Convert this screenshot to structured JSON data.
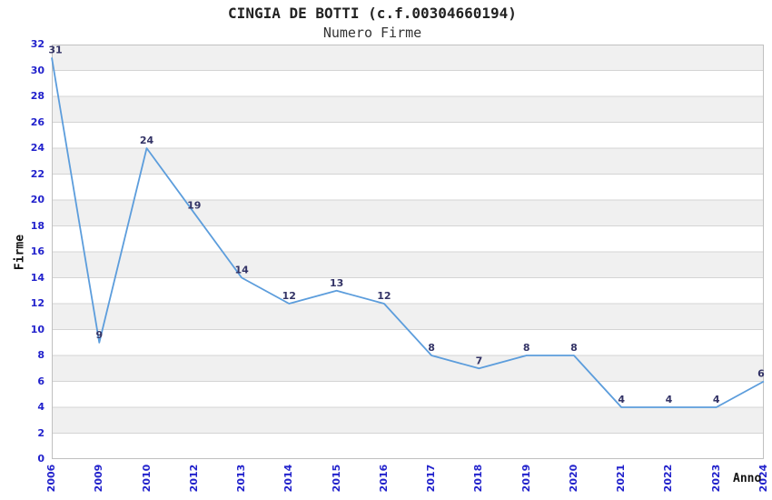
{
  "chart_data": {
    "type": "line",
    "title": "CINGIA DE BOTTI (c.f.00304660194)",
    "subtitle": "Numero Firme",
    "xlabel": "Anno",
    "ylabel": "Firme",
    "categories": [
      "2006",
      "2009",
      "2010",
      "2012",
      "2013",
      "2014",
      "2015",
      "2016",
      "2017",
      "2018",
      "2019",
      "2020",
      "2021",
      "2022",
      "2023",
      "2024"
    ],
    "values": [
      31,
      9,
      24,
      19,
      14,
      12,
      13,
      12,
      8,
      7,
      8,
      8,
      4,
      4,
      4,
      6
    ],
    "point_labels": [
      "31",
      "9",
      "24",
      "19",
      "14",
      "12",
      "13",
      "12",
      "8",
      "7",
      "8",
      "8",
      "4",
      "4",
      "4",
      "6"
    ],
    "ylim": [
      0,
      32
    ],
    "yticks": [
      0,
      2,
      4,
      6,
      8,
      10,
      12,
      14,
      16,
      18,
      20,
      22,
      24,
      26,
      28,
      30,
      32
    ],
    "grid": true,
    "legend": "none",
    "band_fill": "alternating 2-unit horizontal bands, gray band at top range 30-32",
    "colors": {
      "line": "#5C9DDC",
      "tick_label": "#2222CC",
      "point_label": "#333366",
      "band": "#F0F0F0",
      "grid": "#D4D4D4",
      "border": "#C0C0C0",
      "title": "#222222"
    }
  }
}
